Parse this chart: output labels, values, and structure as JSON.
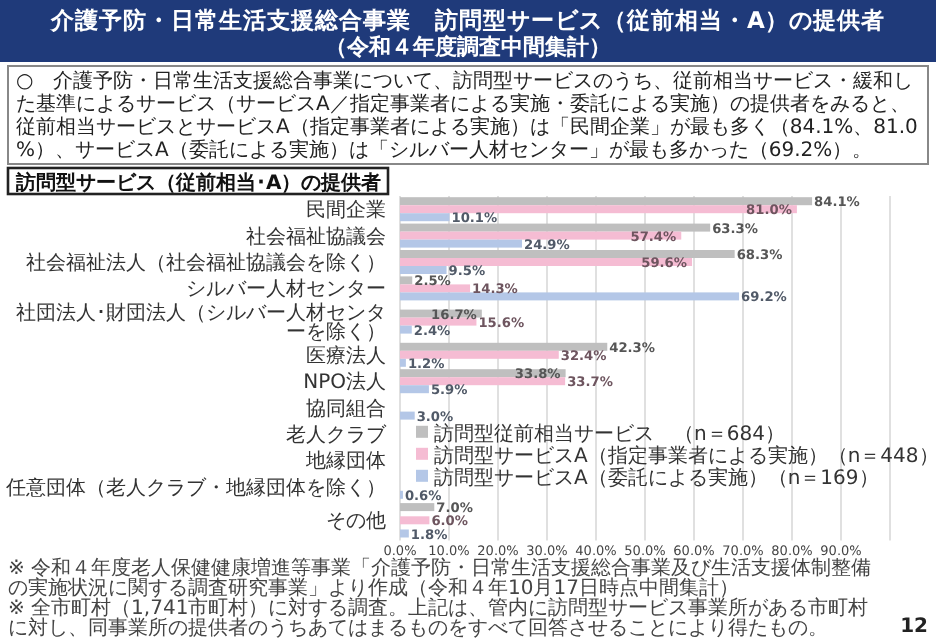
{
  "chart_data": {
    "type": "bar",
    "orientation": "horizontal",
    "title": "介護予防・日常生活支援総合事業　訪問型サービス（従前相当・A）の提供者",
    "subtitle": "（令和４年度調査中間集計）",
    "categories": [
      "民間企業",
      "社会福祉協議会",
      "社会福祉法人（社会福祉協議会を除く）",
      "シルバー人材センター",
      "社団法人･財団法人（シルバー人材センターを除く）",
      "医療法人",
      "NPO法人",
      "協同組合",
      "老人クラブ",
      "地縁団体",
      "任意団体（老人クラブ・地縁団体を除く）",
      "その他"
    ],
    "series": [
      {
        "name": "訪問型従前相当サービス　（n＝684）",
        "color": "#bfbfbf",
        "values": [
          84.1,
          63.3,
          68.3,
          2.5,
          16.7,
          42.3,
          33.8,
          null,
          null,
          null,
          null,
          7.0
        ],
        "value_labels": [
          "84.1%",
          "63.3%",
          "68.3%",
          "2.5%",
          "16.7%",
          "42.3%",
          "33.8%",
          null,
          null,
          null,
          null,
          "7.0%"
        ]
      },
      {
        "name": "訪問型サービスA（指定事業者による実施）（n＝448）",
        "color": "#f5bcd3",
        "values": [
          81.0,
          57.4,
          59.6,
          14.3,
          15.6,
          32.4,
          33.7,
          null,
          null,
          null,
          null,
          6.0
        ],
        "value_labels": [
          "81.0%",
          "57.4%",
          "59.6%",
          "14.3%",
          "15.6%",
          "32.4%",
          "33.7%",
          null,
          null,
          null,
          null,
          "6.0%"
        ]
      },
      {
        "name": "訪問型サービスA（委託による実施）（n＝169）",
        "color": "#b4c7e7",
        "values": [
          10.1,
          24.9,
          9.5,
          69.2,
          2.4,
          1.2,
          5.9,
          3.0,
          null,
          null,
          0.6,
          1.8
        ],
        "value_labels": [
          "10.1%",
          "24.9%",
          "9.5%",
          "69.2%",
          "2.4%",
          "1.2%",
          "5.9%",
          "3.0%",
          null,
          null,
          "0.6%",
          "1.8%"
        ]
      }
    ],
    "xlim": [
      0,
      100
    ],
    "xticks": [
      {
        "value": 0,
        "label": "0.0%"
      },
      {
        "value": 10,
        "label": "10.0%"
      },
      {
        "value": 20,
        "label": "20.0%"
      },
      {
        "value": 30,
        "label": "30.0%"
      },
      {
        "value": 40,
        "label": "40.0%"
      },
      {
        "value": 50,
        "label": "50.0%"
      },
      {
        "value": 60,
        "label": "60.0%"
      },
      {
        "value": 70,
        "label": "70.0%"
      },
      {
        "value": 80,
        "label": "80.0%"
      },
      {
        "value": 90,
        "label": "90.0%"
      }
    ],
    "grid": "x",
    "legend": "bottom right",
    "annotations": [
      "○　介護予防・日常生活支援総合事業について、訪問型サービスのうち、従前相当サービス・緩和した基準によるサービス（サービスA／指定事業者による実施・委託による実施）の提供者をみると、従前相当サービスとサービスA（指定事業者による実施）は「民間企業」が最も多く（84.1%、81.0%）、サービスA（委託による実施）は「シルバー人材センター」が最も多かった（69.2%）。",
      "訪問型サービス（従前相当･A）の提供者",
      "※ 令和４年度老人保健健康増進等事業「介護予防・日常生活支援総合事業及び生活支援体制整備の実施状況に関する調査研究事業」より作成（令和４年10月17日時点中間集計）",
      "※ 全市町村（1,741市町村）に対する調査。上記は、管内に訪問型サービス事業所がある市町村に対し、同事業所の提供者のうちあてはまるものをすべて回答させることにより得たもの。",
      "12"
    ]
  }
}
